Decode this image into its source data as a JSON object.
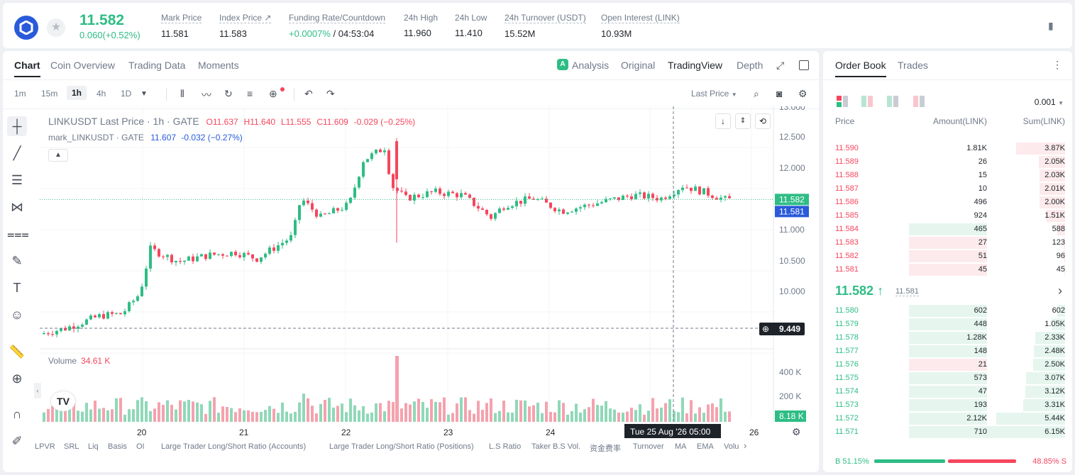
{
  "header": {
    "last_price": "11.582",
    "change": "0.060(+0.52%)",
    "stats": [
      {
        "label": "Mark Price",
        "value": "11.581"
      },
      {
        "label": "Index Price ↗",
        "value": "11.583"
      },
      {
        "label": "Funding Rate/Countdown",
        "value_green": "+0.0007%",
        "value": " / 04:53:04"
      },
      {
        "label": "24h High",
        "value": "11.960"
      },
      {
        "label": "24h Low",
        "value": "11.410"
      },
      {
        "label": "24h Turnover (USDT)",
        "value": "15.52M"
      },
      {
        "label": "Open Interest (LINK)",
        "value": "10.93M"
      }
    ]
  },
  "chart_tabs": [
    "Chart",
    "Coin Overview",
    "Trading Data",
    "Moments"
  ],
  "view_tabs": [
    "Analysis",
    "Original",
    "TradingView",
    "Depth"
  ],
  "timeframes": [
    "1m",
    "15m",
    "1h",
    "4h",
    "1D"
  ],
  "price_type": "Last Price",
  "legend": {
    "symbol": "LINKUSDT Last Price · 1h · GATE",
    "o": "O11.637",
    "h": "H11.640",
    "l": "L11.555",
    "c": "C11.609",
    "chg": "-0.029 (−0.25%)",
    "mark": "mark_LINKUSDT · GATE",
    "mark_val": "11.607",
    "mark_chg": "-0.032 (−0.27%)"
  },
  "volume": {
    "label": "Volume",
    "value": "34.61 K"
  },
  "price_axis": [
    "13.000",
    "12.500",
    "12.000",
    "11.582",
    "11.581",
    "11.000",
    "10.500",
    "10.000",
    "9.449"
  ],
  "volume_axis": [
    "400 K",
    "200 K",
    "8.18 K"
  ],
  "date_axis": [
    "20",
    "21",
    "22",
    "23",
    "24",
    "26"
  ],
  "crosshair_date": "Tue 25 Aug '26   05:00",
  "bottom_items": [
    "LPVR",
    "SRL",
    "Liq",
    "Basis",
    "OI",
    "Large Trader Long/Short Ratio (Accounts)",
    "Large Trader Long/Short Ratio (Positions)",
    "L.S Ratio",
    "Taker B.S Vol.",
    "资金费率",
    "Turnover",
    "MA",
    "EMA",
    "Volu"
  ],
  "orderbook": {
    "tabs": [
      "Order Book",
      "Trades"
    ],
    "precision": "0.001",
    "headers": [
      "Price",
      "Amount(LINK)",
      "Sum(LINK)"
    ],
    "asks": [
      {
        "p": "11.590",
        "a": "1.81K",
        "s": "3.87K"
      },
      {
        "p": "11.589",
        "a": "26",
        "s": "2.05K"
      },
      {
        "p": "11.588",
        "a": "15",
        "s": "2.03K"
      },
      {
        "p": "11.587",
        "a": "10",
        "s": "2.01K"
      },
      {
        "p": "11.586",
        "a": "496",
        "s": "2.00K"
      },
      {
        "p": "11.585",
        "a": "924",
        "s": "1.51K"
      },
      {
        "p": "11.584",
        "a": "465",
        "s": "588"
      },
      {
        "p": "11.583",
        "a": "27",
        "s": "123"
      },
      {
        "p": "11.582",
        "a": "51",
        "s": "96"
      },
      {
        "p": "11.581",
        "a": "45",
        "s": "45"
      }
    ],
    "mid_price": "11.582 ↑",
    "mid_mark": "11.581",
    "bids": [
      {
        "p": "11.580",
        "a": "602",
        "s": "602"
      },
      {
        "p": "11.579",
        "a": "448",
        "s": "1.05K"
      },
      {
        "p": "11.578",
        "a": "1.28K",
        "s": "2.33K"
      },
      {
        "p": "11.577",
        "a": "148",
        "s": "2.48K"
      },
      {
        "p": "11.576",
        "a": "21",
        "s": "2.50K"
      },
      {
        "p": "11.575",
        "a": "573",
        "s": "3.07K"
      },
      {
        "p": "11.574",
        "a": "47",
        "s": "3.12K"
      },
      {
        "p": "11.573",
        "a": "193",
        "s": "3.31K"
      },
      {
        "p": "11.572",
        "a": "2.12K",
        "s": "5.44K"
      },
      {
        "p": "11.571",
        "a": "710",
        "s": "6.15K"
      }
    ],
    "buy_ratio": "B 51.15%",
    "sell_ratio": "48.85% S",
    "buy_fraction": 0.5115
  },
  "colors": {
    "up": "#2ebd85",
    "down": "#f6465d",
    "accent": "#2a5ada"
  }
}
